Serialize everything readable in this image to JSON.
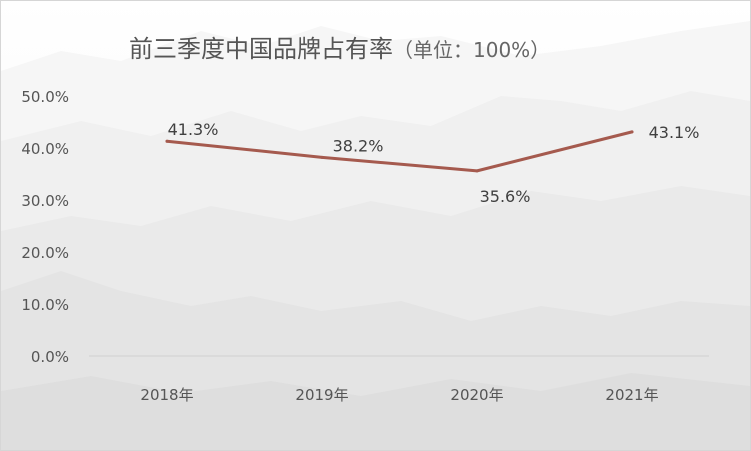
{
  "chart_data": {
    "type": "line",
    "title": "前三季度中国品牌占有率",
    "subtitle": "（单位：100%）",
    "categories": [
      "2018年",
      "2019年",
      "2020年",
      "2021年"
    ],
    "series": [
      {
        "values": [
          41.3,
          38.2,
          35.6,
          43.1
        ],
        "color": "#a55a4e"
      }
    ],
    "data_labels": [
      "41.3%",
      "38.2%",
      "35.6%",
      "43.1%"
    ],
    "y_ticks": [
      "0.0%",
      "10.0%",
      "20.0%",
      "30.0%",
      "40.0%",
      "50.0%"
    ],
    "ylim": [
      0,
      50
    ],
    "grid": false,
    "legend": "none"
  }
}
